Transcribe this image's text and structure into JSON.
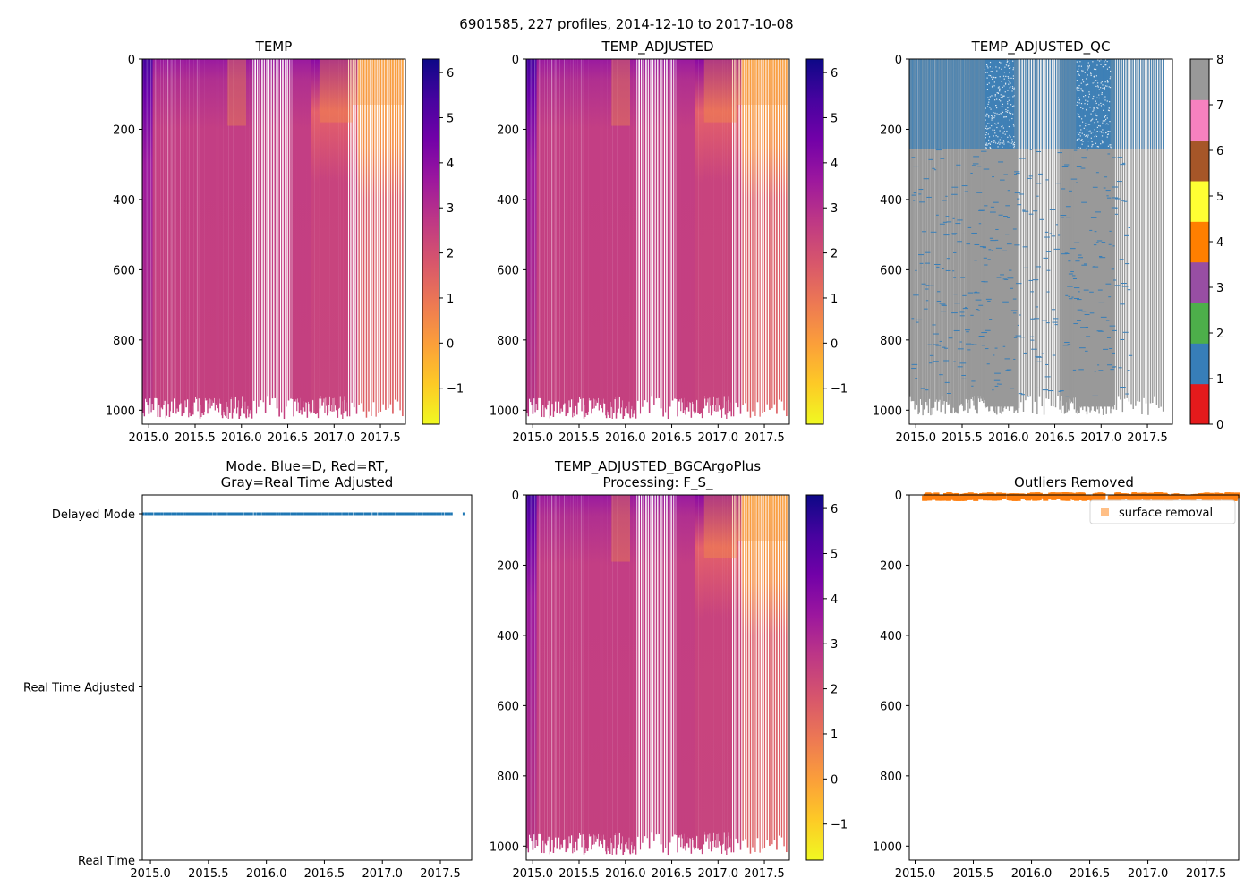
{
  "figure_title": "6901585, 227 profiles, 2014-12-10 to 2017-10-08",
  "colors": {
    "plasma": [
      "#0d0887",
      "#46039f",
      "#7201a8",
      "#9c179e",
      "#bd3786",
      "#d8576b",
      "#ed7953",
      "#fb9f3a",
      "#fdca26",
      "#f0f921"
    ],
    "qc": [
      "#e41a1c",
      "#377eb8",
      "#4daf4a",
      "#984ea3",
      "#ff7f00",
      "#ffff33",
      "#a65628",
      "#f781bf",
      "#999999"
    ],
    "mode_delayed": "#1f77b4",
    "outlier": "#ff7f0e"
  },
  "chart_data": [
    {
      "id": "temp",
      "type": "heatmap",
      "title": "TEMP",
      "xlim": [
        2014.93,
        2017.77
      ],
      "ylim": [
        1040,
        0
      ],
      "xticks": [
        2015.0,
        2015.5,
        2016.0,
        2016.5,
        2017.0,
        2017.5
      ],
      "xtick_labels": [
        "2015.0",
        "2015.5",
        "2016.0",
        "2016.5",
        "2017.0",
        "2017.5"
      ],
      "yticks": [
        0,
        200,
        400,
        600,
        800,
        1000
      ],
      "ytick_labels": [
        "0",
        "200",
        "400",
        "600",
        "800",
        "1000"
      ],
      "colorbar": {
        "range": [
          -1.8,
          6.3
        ],
        "ticks": [
          -1,
          0,
          1,
          2,
          3,
          4,
          5,
          6
        ],
        "tick_labels": [
          "−1",
          "0",
          "1",
          "2",
          "3",
          "4",
          "5",
          "6"
        ]
      },
      "profile_range": [
        2014.94,
        2017.77
      ],
      "profile_count": 227
    },
    {
      "id": "temp_adjusted",
      "type": "heatmap",
      "title": "TEMP_ADJUSTED",
      "xlim": [
        2014.93,
        2017.77
      ],
      "ylim": [
        1040,
        0
      ],
      "xticks": [
        2015.0,
        2015.5,
        2016.0,
        2016.5,
        2017.0,
        2017.5
      ],
      "xtick_labels": [
        "2015.0",
        "2015.5",
        "2016.0",
        "2016.5",
        "2017.0",
        "2017.5"
      ],
      "yticks": [
        0,
        200,
        400,
        600,
        800,
        1000
      ],
      "ytick_labels": [
        "0",
        "200",
        "400",
        "600",
        "800",
        "1000"
      ],
      "colorbar": {
        "range": [
          -1.8,
          6.3
        ],
        "ticks": [
          -1,
          0,
          1,
          2,
          3,
          4,
          5,
          6
        ],
        "tick_labels": [
          "−1",
          "0",
          "1",
          "2",
          "3",
          "4",
          "5",
          "6"
        ]
      },
      "profile_range": [
        2014.94,
        2017.77
      ],
      "profile_count": 227
    },
    {
      "id": "temp_adjusted_qc",
      "type": "heatmap",
      "title": "TEMP_ADJUSTED_QC",
      "xlim": [
        2014.93,
        2017.77
      ],
      "ylim": [
        1040,
        0
      ],
      "xticks": [
        2015.0,
        2015.5,
        2016.0,
        2016.5,
        2017.0,
        2017.5
      ],
      "xtick_labels": [
        "2015.0",
        "2015.5",
        "2016.0",
        "2016.5",
        "2017.0",
        "2017.5"
      ],
      "yticks": [
        0,
        200,
        400,
        600,
        800,
        1000
      ],
      "ytick_labels": [
        "0",
        "200",
        "400",
        "600",
        "800",
        "1000"
      ],
      "colorbar": {
        "range": [
          0,
          8
        ],
        "ticks": [
          0,
          1,
          2,
          3,
          4,
          5,
          6,
          7,
          8
        ],
        "tick_labels": [
          "0",
          "1",
          "2",
          "3",
          "4",
          "5",
          "6",
          "7",
          "8"
        ]
      },
      "qc_mix": {
        "shallow_depth": 255,
        "dense_bands": [
          [
            2015.74,
            2016.06
          ],
          [
            2016.73,
            2017.1
          ]
        ]
      },
      "profile_range": [
        2014.94,
        2017.7
      ],
      "profile_count": 227
    },
    {
      "id": "mode",
      "type": "scatter",
      "title": "Mode. Blue=D, Red=RT,\nGray=Real Time Adjusted",
      "xlim": [
        2014.93,
        2017.77
      ],
      "xticks": [
        2015.0,
        2015.5,
        2016.0,
        2016.5,
        2017.0,
        2017.5
      ],
      "xtick_labels": [
        "2015.0",
        "2015.5",
        "2016.0",
        "2016.5",
        "2017.0",
        "2017.5"
      ],
      "y_categories": [
        "Real Time",
        "Real Time Adjusted",
        "Delayed Mode"
      ],
      "series": [
        {
          "name": "Delayed Mode",
          "y": "Delayed Mode",
          "x_range": [
            2014.94,
            2017.6
          ],
          "extra_x": [
            2017.7
          ]
        }
      ]
    },
    {
      "id": "temp_bgc",
      "type": "heatmap",
      "title": "TEMP_ADJUSTED_BGCArgoPlus\nProcessing: F_S_",
      "xlim": [
        2014.93,
        2017.77
      ],
      "ylim": [
        1040,
        0
      ],
      "xticks": [
        2015.0,
        2015.5,
        2016.0,
        2016.5,
        2017.0,
        2017.5
      ],
      "xtick_labels": [
        "2015.0",
        "2015.5",
        "2016.0",
        "2016.5",
        "2017.0",
        "2017.5"
      ],
      "yticks": [
        0,
        200,
        400,
        600,
        800,
        1000
      ],
      "ytick_labels": [
        "0",
        "200",
        "400",
        "600",
        "800",
        "1000"
      ],
      "colorbar": {
        "range": [
          -1.8,
          6.3
        ],
        "ticks": [
          -1,
          0,
          1,
          2,
          3,
          4,
          5,
          6
        ],
        "tick_labels": [
          "−1",
          "0",
          "1",
          "2",
          "3",
          "4",
          "5",
          "6"
        ]
      },
      "profile_range": [
        2014.94,
        2017.77
      ],
      "profile_count": 227
    },
    {
      "id": "outliers",
      "type": "scatter",
      "title": "Outliers Removed",
      "xlim": [
        2014.95,
        2017.78
      ],
      "ylim": [
        1040,
        0
      ],
      "xticks": [
        2015.0,
        2015.5,
        2016.0,
        2016.5,
        2017.0,
        2017.5
      ],
      "xtick_labels": [
        "2015.0",
        "2015.5",
        "2016.0",
        "2016.5",
        "2017.0",
        "2017.5"
      ],
      "yticks": [
        0,
        200,
        400,
        600,
        800,
        1000
      ],
      "ytick_labels": [
        "0",
        "200",
        "400",
        "600",
        "800",
        "1000"
      ],
      "legend": {
        "label": "surface removal",
        "placement": "upper-right"
      },
      "series": [
        {
          "name": "surface removal",
          "x_range": [
            2015.08,
            2017.77
          ],
          "depth_range": [
            0,
            10
          ]
        }
      ]
    }
  ]
}
